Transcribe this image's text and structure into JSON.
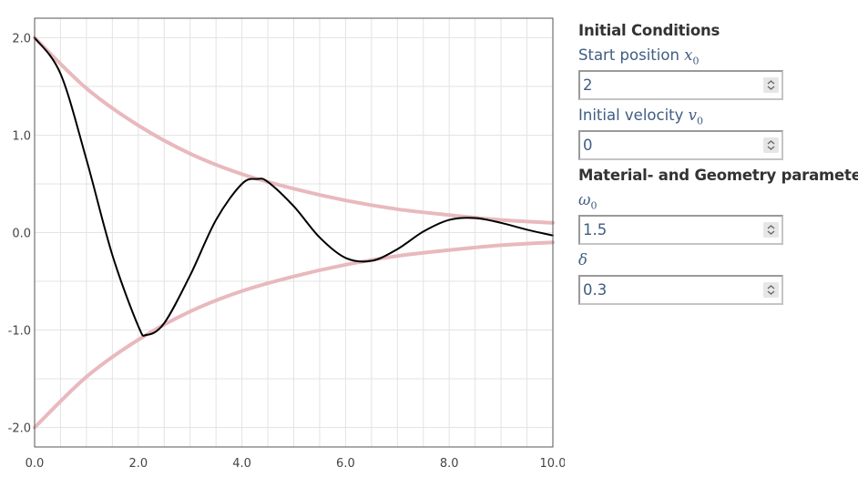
{
  "chart_data": {
    "type": "line",
    "xlim": [
      0,
      10
    ],
    "ylim": [
      -2.2,
      2.2
    ],
    "x_ticks": [
      0.0,
      2.0,
      4.0,
      6.0,
      8.0,
      10.0
    ],
    "x_tick_labels": [
      "0.0",
      "2.0",
      "4.0",
      "6.0",
      "8.0",
      "10.0"
    ],
    "y_ticks": [
      2.0,
      1.0,
      0.0,
      -1.0,
      -2.0
    ],
    "y_tick_labels": [
      "2.0",
      "1.0",
      "0.0",
      "-1.0",
      "-2.0"
    ],
    "grid": true,
    "series": [
      {
        "color": "#000000",
        "x": [
          0,
          0.5,
          1,
          1.5,
          2,
          2.16,
          2.5,
          3,
          3.5,
          4,
          4.3,
          4.5,
          5,
          5.5,
          6,
          6.5,
          7,
          7.5,
          8,
          8.5,
          9,
          9.5,
          10
        ],
        "y": [
          2.0,
          1.63,
          0.75,
          -0.23,
          -0.96,
          -1.05,
          -0.93,
          -0.44,
          0.13,
          0.5,
          0.55,
          0.52,
          0.27,
          -0.05,
          -0.26,
          -0.29,
          -0.17,
          0.01,
          0.13,
          0.15,
          0.1,
          0.03,
          -0.03
        ]
      },
      {
        "color": "#e8b9bd",
        "x": [
          0,
          1,
          2,
          3,
          4,
          5,
          6,
          7,
          8,
          9,
          10
        ],
        "y": [
          2.0,
          1.48,
          1.1,
          0.81,
          0.6,
          0.45,
          0.33,
          0.24,
          0.18,
          0.13,
          0.1
        ]
      },
      {
        "color": "#e8b9bd",
        "x": [
          0,
          1,
          2,
          3,
          4,
          5,
          6,
          7,
          8,
          9,
          10
        ],
        "y": [
          -2.0,
          -1.48,
          -1.1,
          -0.81,
          -0.6,
          -0.45,
          -0.33,
          -0.24,
          -0.18,
          -0.13,
          -0.1
        ]
      }
    ]
  },
  "panel": {
    "initial_title": "Initial Conditions",
    "start_position_label": "Start position",
    "start_position_symbol": "x",
    "start_position_sub": "0",
    "start_position_value": "2",
    "initial_velocity_label": "Initial velocity",
    "initial_velocity_symbol": "v",
    "initial_velocity_sub": "0",
    "initial_velocity_value": "0",
    "material_title": "Material- and Geometry parameters",
    "omega_symbol": "ω",
    "omega_sub": "0",
    "omega_value": "1.5",
    "delta_symbol": "δ",
    "delta_value": "0.3"
  }
}
